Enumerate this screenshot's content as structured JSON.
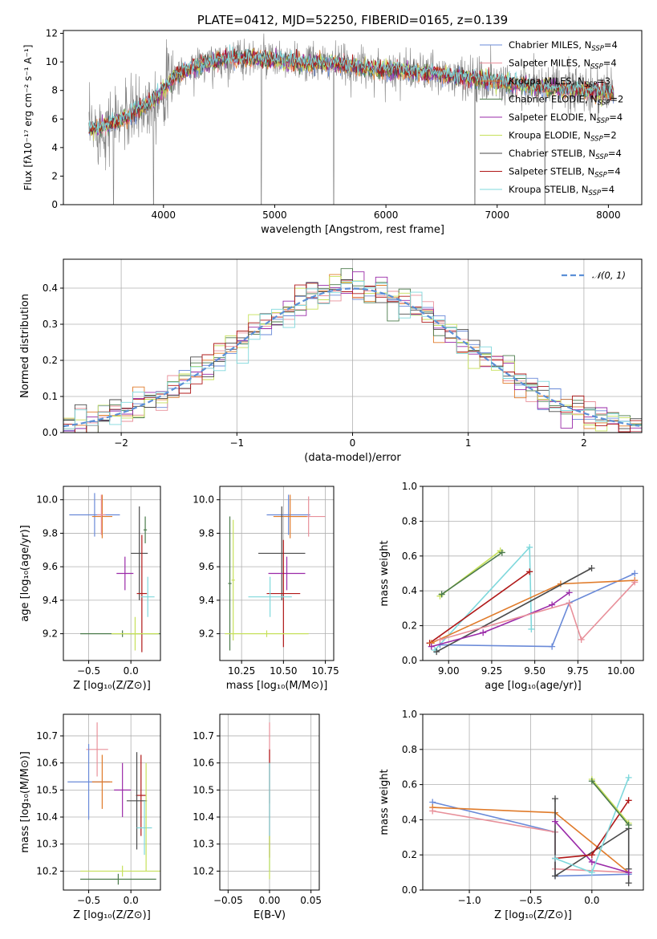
{
  "chart_data": [
    {
      "id": "spectrum",
      "type": "line",
      "title": "PLATE=0412, MJD=52250, FIBERID=0165, z=0.139",
      "xlabel": "wavelength [Angstrom, rest frame]",
      "ylabel": "Flux [fλ10⁻¹⁷ erg cm⁻² s⁻¹ A⁻¹]",
      "xlim": [
        3100,
        8300
      ],
      "ylim": [
        0,
        12.2
      ],
      "xticks": [
        4000,
        5000,
        6000,
        7000,
        8000
      ],
      "yticks": [
        0,
        2,
        4,
        6,
        8,
        10,
        12
      ],
      "grid": false,
      "legend_position": "right",
      "legend": [
        {
          "prefix": "Chabrier MILES, N",
          "sub": "SSP",
          "suffix": "=4",
          "color": "#6a8ad8"
        },
        {
          "prefix": "Salpeter MILES, N",
          "sub": "SSP",
          "suffix": "=4",
          "color": "#e8909a"
        },
        {
          "prefix": "Kroupa MILES, N",
          "sub": "SSP",
          "suffix": "=3",
          "color": "#e07b2a"
        },
        {
          "prefix": "Chabrier ELODIE, N",
          "sub": "SSP",
          "suffix": "=2",
          "color": "#4a7a4a"
        },
        {
          "prefix": "Salpeter ELODIE, N",
          "sub": "SSP",
          "suffix": "=4",
          "color": "#9a2aa8"
        },
        {
          "prefix": "Kroupa ELODIE, N",
          "sub": "SSP",
          "suffix": "=2",
          "color": "#c6e05a"
        },
        {
          "prefix": "Chabrier STELIB, N",
          "sub": "SSP",
          "suffix": "=4",
          "color": "#4a4a4a"
        },
        {
          "prefix": "Salpeter STELIB, N",
          "sub": "SSP",
          "suffix": "=4",
          "color": "#b01818"
        },
        {
          "prefix": "Kroupa STELIB, N",
          "sub": "SSP",
          "suffix": "=4",
          "color": "#7fd8dc"
        }
      ],
      "continuum": [
        [
          3330,
          5.2
        ],
        [
          3500,
          5.6
        ],
        [
          3700,
          6.2
        ],
        [
          3950,
          7.6
        ],
        [
          4100,
          9.0
        ],
        [
          4300,
          9.7
        ],
        [
          4600,
          10.3
        ],
        [
          4900,
          10.2
        ],
        [
          5200,
          9.9
        ],
        [
          5500,
          9.9
        ],
        [
          5800,
          9.6
        ],
        [
          6100,
          9.4
        ],
        [
          6400,
          9.2
        ],
        [
          6700,
          8.9
        ],
        [
          7000,
          8.6
        ],
        [
          7300,
          8.3
        ],
        [
          7600,
          8.1
        ],
        [
          7900,
          7.9
        ],
        [
          8050,
          7.8
        ]
      ],
      "observed_noise_amplitude": 1.1,
      "gap_drops": [
        3550,
        3910,
        4880,
        5530,
        6800,
        7430
      ]
    },
    {
      "id": "residuals",
      "type": "histogram",
      "xlabel": "(data-model)/error",
      "ylabel": "Normed distribution",
      "xlim": [
        -2.5,
        2.5
      ],
      "ylim": [
        0,
        0.48
      ],
      "xticks": [
        -2,
        -1,
        0,
        1,
        2
      ],
      "yticks": [
        0.0,
        0.1,
        0.2,
        0.3,
        0.4
      ],
      "grid": true,
      "bin_width": 0.1,
      "reference_curve": {
        "name": "𝒩(0, 1)",
        "color": "#5b8fd6",
        "style": "dashed"
      },
      "legend_position": "top-right"
    },
    {
      "id": "age_vs_Z",
      "type": "errorbar",
      "xlabel": "Z [log₁₀(Z/Z⊙)]",
      "ylabel": "age  [log₁₀(age/yr)]",
      "xlim": [
        -0.8,
        0.35
      ],
      "ylim": [
        9.04,
        10.08
      ],
      "xticks": [
        -0.5,
        0.0
      ],
      "yticks": [
        9.2,
        9.4,
        9.6,
        9.8,
        10.0
      ],
      "grid": true,
      "points": [
        {
          "x": -0.43,
          "xerr": 0.3,
          "y": 9.91,
          "yerr": 0.13,
          "color": "#6a8ad8"
        },
        {
          "x": -0.34,
          "xerr": 0.12,
          "y": 9.9,
          "yerr": 0.13,
          "color": "#e07b2a"
        },
        {
          "x": -0.35,
          "xerr": 0.05,
          "y": 9.91,
          "yerr": 0.12,
          "color": "#e8909a"
        },
        {
          "x": -0.07,
          "xerr": 0.1,
          "y": 9.56,
          "yerr": 0.1,
          "color": "#9a2aa8"
        },
        {
          "x": 0.1,
          "xerr": 0.1,
          "y": 9.68,
          "yerr": 0.28,
          "color": "#4a4a4a"
        },
        {
          "x": 0.13,
          "xerr": 0.06,
          "y": 9.44,
          "yerr": 0.35,
          "color": "#b01818"
        },
        {
          "x": 0.2,
          "xerr": 0.08,
          "y": 9.42,
          "yerr": 0.12,
          "color": "#7fd8dc"
        },
        {
          "x": 0.17,
          "xerr": 0.02,
          "y": 9.82,
          "yerr": 0.08,
          "color": "#4a7a4a"
        },
        {
          "x": -0.1,
          "xerr": 0.5,
          "y": 9.2,
          "yerr": 0.02,
          "color": "#4a7a4a"
        },
        {
          "x": 0.05,
          "xerr": 0.28,
          "y": 9.2,
          "yerr": 0.1,
          "color": "#c6e05a"
        }
      ]
    },
    {
      "id": "age_vs_mass",
      "type": "errorbar",
      "xlabel": "mass [log₁₀(M/M⊙)]",
      "ylabel": "",
      "xlim": [
        10.12,
        10.8
      ],
      "ylim": [
        9.04,
        10.08
      ],
      "xticks": [
        10.25,
        10.5,
        10.75
      ],
      "yticks": [
        9.2,
        9.4,
        9.6,
        9.8,
        10.0
      ],
      "grid": true,
      "points": [
        {
          "x": 10.53,
          "xerr": 0.13,
          "y": 9.91,
          "yerr": 0.12,
          "color": "#6a8ad8"
        },
        {
          "x": 10.65,
          "xerr": 0.1,
          "y": 9.9,
          "yerr": 0.12,
          "color": "#e8909a"
        },
        {
          "x": 10.54,
          "xerr": 0.1,
          "y": 9.9,
          "yerr": 0.13,
          "color": "#e07b2a"
        },
        {
          "x": 10.49,
          "xerr": 0.14,
          "y": 9.68,
          "yerr": 0.28,
          "color": "#4a4a4a"
        },
        {
          "x": 10.52,
          "xerr": 0.11,
          "y": 9.56,
          "yerr": 0.1,
          "color": "#9a2aa8"
        },
        {
          "x": 10.5,
          "xerr": 0.1,
          "y": 9.44,
          "yerr": 0.32,
          "color": "#b01818"
        },
        {
          "x": 10.42,
          "xerr": 0.13,
          "y": 9.42,
          "yerr": 0.12,
          "color": "#7fd8dc"
        },
        {
          "x": 10.2,
          "xerr": 0.01,
          "y": 9.52,
          "yerr": 0.36,
          "color": "#c6e05a"
        },
        {
          "x": 10.18,
          "xerr": 0.01,
          "y": 9.5,
          "yerr": 0.4,
          "color": "#4a7a4a"
        },
        {
          "x": 10.4,
          "xerr": 0.25,
          "y": 9.2,
          "yerr": 0.02,
          "color": "#c6e05a"
        }
      ]
    },
    {
      "id": "massweight_vs_age",
      "type": "line",
      "xlabel": "age  [log₁₀(age/yr)]",
      "ylabel": "mass weight",
      "xlim": [
        8.85,
        10.13
      ],
      "ylim": [
        0,
        1.0
      ],
      "xticks": [
        9.0,
        9.25,
        9.5,
        9.75,
        10.0
      ],
      "yticks": [
        0.0,
        0.2,
        0.4,
        0.6,
        0.8,
        1.0
      ],
      "grid": true,
      "series": [
        {
          "color": "#c6e05a",
          "x": [
            8.95,
            9.3
          ],
          "y": [
            0.37,
            0.63
          ]
        },
        {
          "color": "#4a7a4a",
          "x": [
            8.96,
            9.31
          ],
          "y": [
            0.38,
            0.62
          ]
        },
        {
          "color": "#7fd8dc",
          "x": [
            8.92,
            9.47,
            9.48
          ],
          "y": [
            0.06,
            0.65,
            0.18
          ]
        },
        {
          "color": "#b01818",
          "x": [
            8.89,
            9.47
          ],
          "y": [
            0.1,
            0.51
          ]
        },
        {
          "color": "#6a8ad8",
          "x": [
            8.95,
            9.6,
            9.7,
            10.08
          ],
          "y": [
            0.09,
            0.08,
            0.33,
            0.5
          ]
        },
        {
          "color": "#e07b2a",
          "x": [
            8.9,
            9.65,
            10.08
          ],
          "y": [
            0.1,
            0.44,
            0.46
          ]
        },
        {
          "color": "#4a4a4a",
          "x": [
            8.93,
            9.83
          ],
          "y": [
            0.05,
            0.53
          ]
        },
        {
          "color": "#9a2aa8",
          "x": [
            8.9,
            9.2,
            9.6,
            9.7
          ],
          "y": [
            0.08,
            0.16,
            0.32,
            0.39
          ]
        },
        {
          "color": "#e8909a",
          "x": [
            8.95,
            9.7,
            9.77,
            10.08
          ],
          "y": [
            0.12,
            0.33,
            0.12,
            0.45
          ]
        }
      ]
    },
    {
      "id": "mass_vs_Z",
      "type": "errorbar",
      "xlabel": "Z [log₁₀(Z/Z⊙)]",
      "ylabel": "mass [log₁₀(M/M⊙)]",
      "xlim": [
        -0.8,
        0.35
      ],
      "ylim": [
        10.13,
        10.78
      ],
      "xticks": [
        -0.5,
        0.0
      ],
      "yticks": [
        10.2,
        10.3,
        10.4,
        10.5,
        10.6,
        10.7
      ],
      "grid": true,
      "points": [
        {
          "x": -0.4,
          "xerr": 0.13,
          "y": 10.65,
          "yerr": 0.1,
          "color": "#e8909a"
        },
        {
          "x": -0.5,
          "xerr": 0.25,
          "y": 10.53,
          "yerr": 0.14,
          "color": "#6a8ad8"
        },
        {
          "x": -0.34,
          "xerr": 0.12,
          "y": 10.53,
          "yerr": 0.1,
          "color": "#e07b2a"
        },
        {
          "x": -0.1,
          "xerr": 0.1,
          "y": 10.5,
          "yerr": 0.1,
          "color": "#9a2aa8"
        },
        {
          "x": 0.12,
          "xerr": 0.06,
          "y": 10.48,
          "yerr": 0.15,
          "color": "#b01818"
        },
        {
          "x": 0.07,
          "xerr": 0.12,
          "y": 10.46,
          "yerr": 0.18,
          "color": "#4a4a4a"
        },
        {
          "x": 0.16,
          "xerr": 0.09,
          "y": 10.36,
          "yerr": 0.1,
          "color": "#7fd8dc"
        },
        {
          "x": -0.1,
          "xerr": 0.5,
          "y": 10.2,
          "yerr": 0.02,
          "color": "#c6e05a"
        },
        {
          "x": -0.15,
          "xerr": 0.45,
          "y": 10.17,
          "yerr": 0.02,
          "color": "#4a7a4a"
        },
        {
          "x": 0.18,
          "xerr": 0.01,
          "y": 10.4,
          "yerr": 0.2,
          "color": "#c6e05a"
        }
      ]
    },
    {
      "id": "mass_vs_EBV",
      "type": "errorbar",
      "xlabel": "E(B-V)",
      "ylabel": "",
      "xlim": [
        -0.06,
        0.06
      ],
      "ylim": [
        10.13,
        10.78
      ],
      "xticks": [
        -0.05,
        0.0,
        0.05
      ],
      "yticks": [
        10.2,
        10.3,
        10.4,
        10.5,
        10.6,
        10.7
      ],
      "grid": true,
      "points": [
        {
          "x": 0.0,
          "xerr": 0.0,
          "y": 10.6,
          "yerr": 0.15,
          "color": "#e8909a"
        },
        {
          "x": 0.0,
          "xerr": 0.0,
          "y": 10.45,
          "yerr": 0.2,
          "color": "#b01818"
        },
        {
          "x": 0.0,
          "xerr": 0.0,
          "y": 10.4,
          "yerr": 0.2,
          "color": "#7fd8dc"
        },
        {
          "x": 0.0,
          "xerr": 0.0,
          "y": 10.25,
          "yerr": 0.08,
          "color": "#c6e05a"
        }
      ]
    },
    {
      "id": "massweight_vs_Z",
      "type": "line",
      "xlabel": "Z [log₁₀(Z/Z⊙)]",
      "ylabel": "mass weight",
      "xlim": [
        -1.38,
        0.42
      ],
      "ylim": [
        0,
        1.0
      ],
      "xticks": [
        -1.0,
        -0.5,
        0.0
      ],
      "yticks": [
        0.0,
        0.2,
        0.4,
        0.6,
        0.8,
        1.0
      ],
      "grid": true,
      "series": [
        {
          "color": "#6a8ad8",
          "x": [
            -1.3,
            -0.3,
            -0.3,
            0.3
          ],
          "y": [
            0.5,
            0.33,
            0.08,
            0.09
          ]
        },
        {
          "color": "#e07b2a",
          "x": [
            -1.3,
            -0.3,
            0.3
          ],
          "y": [
            0.47,
            0.44,
            0.1
          ]
        },
        {
          "color": "#e8909a",
          "x": [
            -1.3,
            -0.3,
            -0.3,
            0.3
          ],
          "y": [
            0.45,
            0.33,
            0.12,
            0.1
          ]
        },
        {
          "color": "#4a4a4a",
          "x": [
            -0.3,
            -0.3,
            0.3,
            0.3,
            0.3
          ],
          "y": [
            0.52,
            0.08,
            0.35,
            0.12,
            0.04
          ]
        },
        {
          "color": "#9a2aa8",
          "x": [
            -0.3,
            0.0,
            0.3
          ],
          "y": [
            0.39,
            0.16,
            0.1
          ]
        },
        {
          "color": "#b01818",
          "x": [
            -0.3,
            0.0,
            0.3
          ],
          "y": [
            0.18,
            0.2,
            0.51
          ]
        },
        {
          "color": "#7fd8dc",
          "x": [
            -0.3,
            0.0,
            0.3
          ],
          "y": [
            0.18,
            0.1,
            0.64
          ]
        },
        {
          "color": "#c6e05a",
          "x": [
            0.0,
            0.3
          ],
          "y": [
            0.63,
            0.38
          ]
        },
        {
          "color": "#4a7a4a",
          "x": [
            0.0,
            0.3
          ],
          "y": [
            0.62,
            0.37
          ]
        }
      ]
    }
  ]
}
